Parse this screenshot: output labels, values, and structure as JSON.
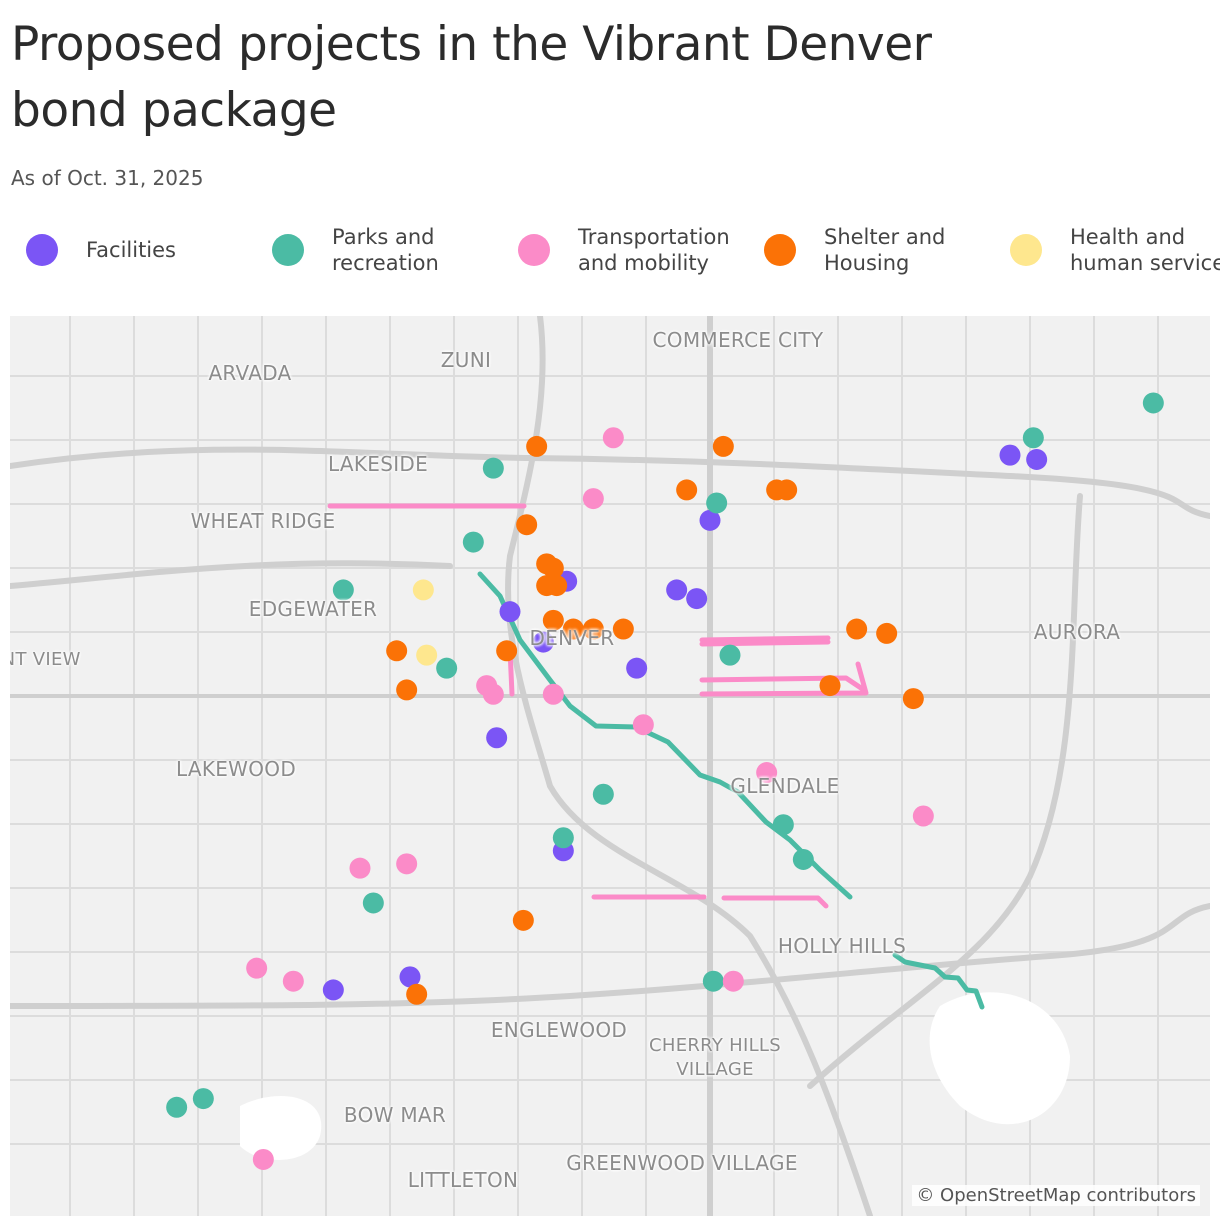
{
  "title": "Proposed projects in the Vibrant Denver bond package",
  "subtitle": "As of Oct. 31, 2025",
  "map": {
    "lon_range": [
      -105.15,
      -104.79
    ],
    "lat_range": [
      39.815,
      39.608
    ]
  },
  "categories": [
    {
      "label": "Facilities",
      "color": "#7b55f5",
      "points": [
        [
          -104.85,
          39.783
        ],
        [
          -104.842,
          39.782
        ],
        [
          -104.94,
          39.768
        ],
        [
          -104.983,
          39.754
        ],
        [
          -104.95,
          39.752
        ],
        [
          -104.944,
          39.75
        ],
        [
          -105.0,
          39.747
        ],
        [
          -104.99,
          39.74
        ],
        [
          -104.962,
          39.734
        ],
        [
          -105.004,
          39.718
        ],
        [
          -104.984,
          39.692
        ],
        [
          -105.03,
          39.663
        ],
        [
          -105.053,
          39.66
        ]
      ]
    },
    {
      "label": "Parks and recreation",
      "color": "#4bbba4",
      "points": [
        [
          -104.807,
          39.795
        ],
        [
          -104.843,
          39.787
        ],
        [
          -105.005,
          39.78
        ],
        [
          -104.938,
          39.772
        ],
        [
          -105.011,
          39.763
        ],
        [
          -105.05,
          39.752
        ],
        [
          -105.019,
          39.734
        ],
        [
          -104.934,
          39.737
        ],
        [
          -104.972,
          39.705
        ],
        [
          -104.984,
          39.695
        ],
        [
          -104.918,
          39.698
        ],
        [
          -104.912,
          39.69
        ],
        [
          -105.041,
          39.68
        ],
        [
          -104.939,
          39.662
        ],
        [
          -105.1,
          39.633
        ],
        [
          -105.092,
          39.635
        ]
      ]
    },
    {
      "label": "Transportation and mobility",
      "color": "#fb8bc8",
      "points": [
        [
          -104.969,
          39.787
        ],
        [
          -104.975,
          39.773
        ],
        [
          -105.007,
          39.73
        ],
        [
          -105.005,
          39.728
        ],
        [
          -104.987,
          39.728
        ],
        [
          -104.96,
          39.721
        ],
        [
          -104.923,
          39.71
        ],
        [
          -104.876,
          39.7
        ],
        [
          -105.045,
          39.688
        ],
        [
          -105.031,
          39.689
        ],
        [
          -105.076,
          39.665
        ],
        [
          -105.065,
          39.662
        ],
        [
          -104.933,
          39.662
        ],
        [
          -105.074,
          39.621
        ]
      ]
    },
    {
      "label": "Shelter and Housing",
      "color": "#fb7206",
      "points": [
        [
          -104.992,
          39.785
        ],
        [
          -104.936,
          39.785
        ],
        [
          -104.947,
          39.775
        ],
        [
          -104.92,
          39.775
        ],
        [
          -104.917,
          39.775
        ],
        [
          -104.995,
          39.767
        ],
        [
          -104.989,
          39.758
        ],
        [
          -104.987,
          39.757
        ],
        [
          -104.989,
          39.753
        ],
        [
          -104.986,
          39.753
        ],
        [
          -104.987,
          39.745
        ],
        [
          -104.981,
          39.743
        ],
        [
          -104.975,
          39.743
        ],
        [
          -104.966,
          39.743
        ],
        [
          -105.001,
          39.738
        ],
        [
          -105.034,
          39.738
        ],
        [
          -105.031,
          39.729
        ],
        [
          -104.896,
          39.743
        ],
        [
          -104.887,
          39.742
        ],
        [
          -104.904,
          39.73
        ],
        [
          -104.879,
          39.727
        ],
        [
          -104.996,
          39.676
        ],
        [
          -105.028,
          39.659
        ]
      ]
    },
    {
      "label": "Health and human services",
      "color": "#fee78e",
      "points": [
        [
          -105.026,
          39.752
        ],
        [
          -105.025,
          39.737
        ]
      ]
    }
  ],
  "places": [
    "COMMERCE CITY",
    "ARVADA",
    "ZUNI",
    "LAKESIDE",
    "WHEAT RIDGE",
    "EDGEWATER",
    "PLEASANT VIEW",
    "DENVER",
    "AURORA",
    "LAKEWOOD",
    "GLENDALE",
    "HOLLY HILLS",
    "ENGLEWOOD",
    "CHERRY HILLS VILLAGE",
    "BOW MAR",
    "LITTLETON",
    "GREENWOOD VILLAGE"
  ],
  "attribution": "© OpenStreetMap contributors"
}
